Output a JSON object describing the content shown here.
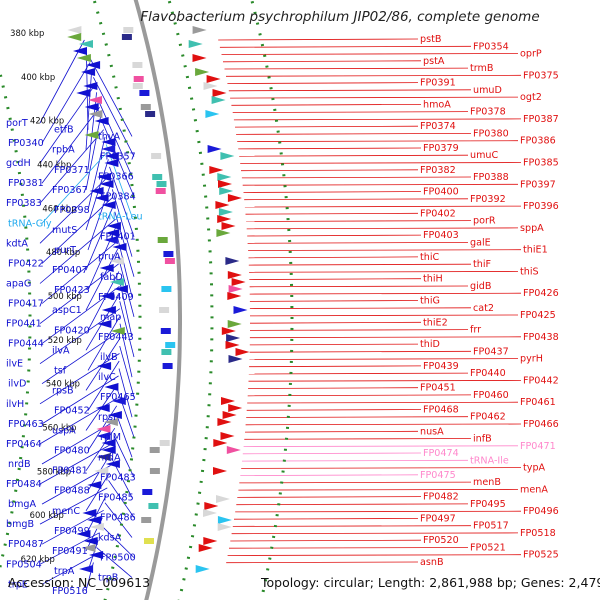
{
  "title": "Flavobacterium psychrophilum JIP02/86, complete genome",
  "footer": {
    "accession": "Accession: NC_009613",
    "summary": "Topology: circular; Length: 2,861,988 bp; Genes: 2,479"
  },
  "colors": {
    "backbone": "#9a9a9a",
    "forward_strand": "#e01010",
    "reverse_strand": "#1010d0",
    "rna": "#ff88cc",
    "trna_left": "#22aaee",
    "gc_dots": "#2a8a2a"
  },
  "kbp_ticks": [
    "380 kbp",
    "400 kbp",
    "420 kbp",
    "440 kbp",
    "460 kbp",
    "480 kbp",
    "500 kbp",
    "520 kbp",
    "540 kbp",
    "560 kbp",
    "580 kbp",
    "600 kbp",
    "620 kbp"
  ],
  "left_labels": [
    {
      "text": "porT",
      "type": "gene"
    },
    {
      "text": "etfB",
      "type": "gene"
    },
    {
      "text": "thyA",
      "type": "gene"
    },
    {
      "text": "FP0340",
      "type": "gene"
    },
    {
      "text": "rpbA",
      "type": "gene"
    },
    {
      "text": "FP0357",
      "type": "gene"
    },
    {
      "text": "gcdH",
      "type": "gene"
    },
    {
      "text": "FP0371",
      "type": "gene"
    },
    {
      "text": "FP0366",
      "type": "gene"
    },
    {
      "text": "FP0381",
      "type": "gene"
    },
    {
      "text": "FP0367",
      "type": "gene"
    },
    {
      "text": "FP0384",
      "type": "gene"
    },
    {
      "text": "FP0383",
      "type": "gene"
    },
    {
      "text": "FP0398",
      "type": "gene"
    },
    {
      "text": "tRNA-Leu",
      "type": "trna"
    },
    {
      "text": "tRNA-Gly",
      "type": "trna"
    },
    {
      "text": "mutS",
      "type": "gene"
    },
    {
      "text": "FP0401",
      "type": "gene"
    },
    {
      "text": "kdtA",
      "type": "gene"
    },
    {
      "text": "purT",
      "type": "gene"
    },
    {
      "text": "pruA",
      "type": "gene"
    },
    {
      "text": "FP0422",
      "type": "gene"
    },
    {
      "text": "FP0407",
      "type": "gene"
    },
    {
      "text": "fabD",
      "type": "gene"
    },
    {
      "text": "apaG",
      "type": "gene"
    },
    {
      "text": "FP0423",
      "type": "gene"
    },
    {
      "text": "FP0409",
      "type": "gene"
    },
    {
      "text": "FP0417",
      "type": "gene"
    },
    {
      "text": "aspC1",
      "type": "gene"
    },
    {
      "text": "map",
      "type": "gene"
    },
    {
      "text": "FP0441",
      "type": "gene"
    },
    {
      "text": "FP0420",
      "type": "gene"
    },
    {
      "text": "FP0443",
      "type": "gene"
    },
    {
      "text": "FP0444",
      "type": "gene"
    },
    {
      "text": "ilvA",
      "type": "gene"
    },
    {
      "text": "ilvB",
      "type": "gene"
    },
    {
      "text": "ilvE",
      "type": "gene"
    },
    {
      "text": "tsf",
      "type": "gene"
    },
    {
      "text": "ilvC",
      "type": "gene"
    },
    {
      "text": "ilvD",
      "type": "gene"
    },
    {
      "text": "rpsB",
      "type": "gene"
    },
    {
      "text": "FP0465",
      "type": "gene"
    },
    {
      "text": "ilvH",
      "type": "gene"
    },
    {
      "text": "FP0452",
      "type": "gene"
    },
    {
      "text": "rpsI",
      "type": "gene"
    },
    {
      "text": "FP0463",
      "type": "gene"
    },
    {
      "text": "uspA",
      "type": "gene"
    },
    {
      "text": "rplM",
      "type": "gene"
    },
    {
      "text": "FP0464",
      "type": "gene"
    },
    {
      "text": "FP0480",
      "type": "gene"
    },
    {
      "text": "nrdA",
      "type": "gene"
    },
    {
      "text": "nrdB",
      "type": "gene"
    },
    {
      "text": "FP0481",
      "type": "gene"
    },
    {
      "text": "FP0483",
      "type": "gene"
    },
    {
      "text": "FP0484",
      "type": "gene"
    },
    {
      "text": "FP0488",
      "type": "gene"
    },
    {
      "text": "FP0485",
      "type": "gene"
    },
    {
      "text": "bmgA",
      "type": "gene"
    },
    {
      "text": "menC",
      "type": "gene"
    },
    {
      "text": "FP0486",
      "type": "gene"
    },
    {
      "text": "bmgB",
      "type": "gene"
    },
    {
      "text": "FP0499",
      "type": "gene"
    },
    {
      "text": "kdsA",
      "type": "gene"
    },
    {
      "text": "FP0487",
      "type": "gene"
    },
    {
      "text": "FP0491",
      "type": "gene"
    },
    {
      "text": "FP0500",
      "type": "gene"
    },
    {
      "text": "FP0504",
      "type": "gene"
    },
    {
      "text": "trpA",
      "type": "gene"
    },
    {
      "text": "trpB",
      "type": "gene"
    },
    {
      "text": "trpE",
      "type": "gene"
    },
    {
      "text": "FP0516",
      "type": "gene"
    }
  ],
  "right_labels": [
    {
      "text": "pstB",
      "type": "gene"
    },
    {
      "text": "FP0354",
      "type": "gene"
    },
    {
      "text": "oprP",
      "type": "gene"
    },
    {
      "text": "pstA",
      "type": "gene"
    },
    {
      "text": "trmB",
      "type": "gene"
    },
    {
      "text": "FP0375",
      "type": "gene"
    },
    {
      "text": "FP0391",
      "type": "gene"
    },
    {
      "text": "umuD",
      "type": "gene"
    },
    {
      "text": "ogt2",
      "type": "gene"
    },
    {
      "text": "hmoA",
      "type": "gene"
    },
    {
      "text": "FP0378",
      "type": "gene"
    },
    {
      "text": "FP0387",
      "type": "gene"
    },
    {
      "text": "FP0374",
      "type": "gene"
    },
    {
      "text": "FP0380",
      "type": "gene"
    },
    {
      "text": "FP0386",
      "type": "gene"
    },
    {
      "text": "FP0379",
      "type": "gene"
    },
    {
      "text": "umuC",
      "type": "gene"
    },
    {
      "text": "FP0385",
      "type": "gene"
    },
    {
      "text": "FP0382",
      "type": "gene"
    },
    {
      "text": "FP0388",
      "type": "gene"
    },
    {
      "text": "FP0397",
      "type": "gene"
    },
    {
      "text": "FP0400",
      "type": "gene"
    },
    {
      "text": "FP0392",
      "type": "gene"
    },
    {
      "text": "FP0396",
      "type": "gene"
    },
    {
      "text": "FP0402",
      "type": "gene"
    },
    {
      "text": "porR",
      "type": "gene"
    },
    {
      "text": "sppA",
      "type": "gene"
    },
    {
      "text": "FP0403",
      "type": "gene"
    },
    {
      "text": "galE",
      "type": "gene"
    },
    {
      "text": "thiE1",
      "type": "gene"
    },
    {
      "text": "thiC",
      "type": "gene"
    },
    {
      "text": "thiF",
      "type": "gene"
    },
    {
      "text": "thiS",
      "type": "gene"
    },
    {
      "text": "thiH",
      "type": "gene"
    },
    {
      "text": "gidB",
      "type": "gene"
    },
    {
      "text": "FP0426",
      "type": "gene"
    },
    {
      "text": "thiG",
      "type": "gene"
    },
    {
      "text": "cat2",
      "type": "gene"
    },
    {
      "text": "FP0425",
      "type": "gene"
    },
    {
      "text": "thiE2",
      "type": "gene"
    },
    {
      "text": "frr",
      "type": "gene"
    },
    {
      "text": "FP0438",
      "type": "gene"
    },
    {
      "text": "thiD",
      "type": "gene"
    },
    {
      "text": "FP0437",
      "type": "gene"
    },
    {
      "text": "pyrH",
      "type": "gene"
    },
    {
      "text": "FP0439",
      "type": "gene"
    },
    {
      "text": "FP0440",
      "type": "gene"
    },
    {
      "text": "FP0442",
      "type": "gene"
    },
    {
      "text": "FP0451",
      "type": "gene"
    },
    {
      "text": "FP0460",
      "type": "gene"
    },
    {
      "text": "FP0461",
      "type": "gene"
    },
    {
      "text": "FP0468",
      "type": "gene"
    },
    {
      "text": "FP0462",
      "type": "gene"
    },
    {
      "text": "FP0466",
      "type": "gene"
    },
    {
      "text": "nusA",
      "type": "gene"
    },
    {
      "text": "infB",
      "type": "gene"
    },
    {
      "text": "FP0471",
      "type": "rna"
    },
    {
      "text": "FP0474",
      "type": "rna"
    },
    {
      "text": "tRNA-Ile",
      "type": "rna"
    },
    {
      "text": "typA",
      "type": "gene"
    },
    {
      "text": "FP0475",
      "type": "rna"
    },
    {
      "text": "menB",
      "type": "gene"
    },
    {
      "text": "menA",
      "type": "gene"
    },
    {
      "text": "FP0482",
      "type": "gene"
    },
    {
      "text": "FP0495",
      "type": "gene"
    },
    {
      "text": "FP0496",
      "type": "gene"
    },
    {
      "text": "FP0497",
      "type": "gene"
    },
    {
      "text": "FP0517",
      "type": "gene"
    },
    {
      "text": "FP0518",
      "type": "gene"
    },
    {
      "text": "FP0520",
      "type": "gene"
    },
    {
      "text": "FP0521",
      "type": "gene"
    },
    {
      "text": "FP0525",
      "type": "gene"
    },
    {
      "text": "asnB",
      "type": "gene"
    }
  ]
}
